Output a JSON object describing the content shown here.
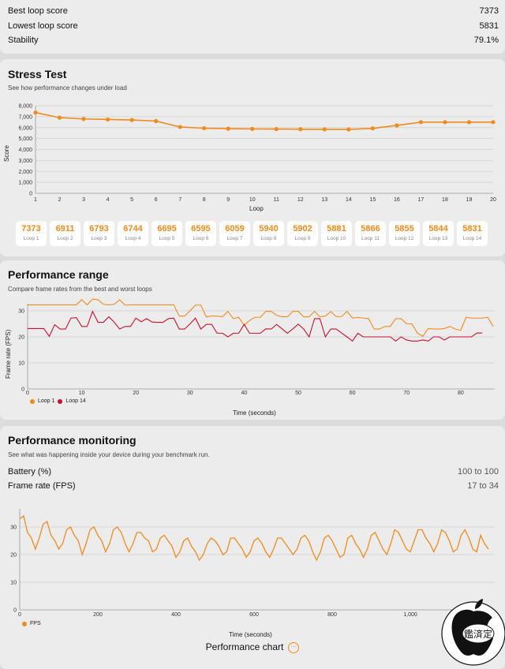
{
  "summary": {
    "rows": [
      {
        "label": "Best loop score",
        "value": "7373"
      },
      {
        "label": "Lowest loop score",
        "value": "5831"
      },
      {
        "label": "Stability",
        "value": "79.1%"
      }
    ]
  },
  "stress": {
    "title": "Stress Test",
    "subtitle": "See how performance changes under load",
    "loop_scores": [
      {
        "value": "7373",
        "label": "Loop 1"
      },
      {
        "value": "6911",
        "label": "Loop 2"
      },
      {
        "value": "6793",
        "label": "Loop 3"
      },
      {
        "value": "6744",
        "label": "Loop 4"
      },
      {
        "value": "6695",
        "label": "Loop 5"
      },
      {
        "value": "6595",
        "label": "Loop 6"
      },
      {
        "value": "6059",
        "label": "Loop 7"
      },
      {
        "value": "5940",
        "label": "Loop 8"
      },
      {
        "value": "5902",
        "label": "Loop 9"
      },
      {
        "value": "5881",
        "label": "Loop 10"
      },
      {
        "value": "5866",
        "label": "Loop 11"
      },
      {
        "value": "5855",
        "label": "Loop 12"
      },
      {
        "value": "5844",
        "label": "Loop 13"
      },
      {
        "value": "5831",
        "label": "Loop 14"
      }
    ]
  },
  "range": {
    "title": "Performance range",
    "subtitle": "Compare frame rates from the best and worst loops"
  },
  "monitoring": {
    "title": "Performance monitoring",
    "subtitle": "See what was happening inside your device during your benchmark run.",
    "battery_label": "Battery (%)",
    "battery_value": "100 to 100",
    "fps_label": "Frame rate (FPS)",
    "fps_value": "17 to 34",
    "chart_button": "Performance chart"
  },
  "watermark": {
    "text": "鑑済定"
  },
  "colors": {
    "accent": "#f08a1c",
    "loop14": "#c8102e"
  },
  "chart_data": [
    {
      "type": "line",
      "xlabel": "Loop",
      "ylabel": "Score",
      "ylim": [
        0,
        8000
      ],
      "xlim": [
        1,
        20
      ],
      "grid": true,
      "yticks": [
        "0",
        "1,000",
        "2,000",
        "3,000",
        "4,000",
        "5,000",
        "6,000",
        "7,000",
        "8,000"
      ],
      "x": [
        1,
        2,
        3,
        4,
        5,
        6,
        7,
        8,
        9,
        10,
        11,
        12,
        13,
        14,
        15,
        16,
        17,
        18,
        19,
        20
      ],
      "values": [
        7373,
        6911,
        6793,
        6744,
        6695,
        6595,
        6059,
        5940,
        5902,
        5881,
        5866,
        5855,
        5844,
        5831,
        5930,
        6200,
        6500,
        6500,
        6500,
        6500
      ]
    },
    {
      "type": "line",
      "xlabel": "Time (seconds)",
      "ylabel": "Frame rate (FPS)",
      "ylim": [
        0,
        35
      ],
      "xlim": [
        0,
        86
      ],
      "grid": true,
      "legend": "bottom-left",
      "xticks": [
        "0",
        "10",
        "20",
        "30",
        "40",
        "50",
        "60",
        "70",
        "80"
      ],
      "yticks": [
        "0",
        "10",
        "20",
        "30"
      ],
      "series": [
        {
          "name": "Loop 1",
          "color": "#f08a1c",
          "values": [
            32.3,
            32.3,
            32.3,
            32.3,
            32.3,
            32.3,
            32.3,
            32.3,
            32.3,
            32.3,
            34.3,
            32.3,
            34.5,
            34.3,
            32.5,
            32.3,
            32.5,
            34.2,
            32.2,
            32.3,
            32.3,
            32.3,
            32.3,
            32.3,
            32.3,
            32.3,
            32.3,
            32.3,
            28,
            28,
            30,
            32.2,
            32.2,
            27.7,
            28,
            28,
            27.7,
            29.8,
            27,
            27.5,
            24.5,
            26.3,
            27.5,
            27.5,
            29.8,
            29.8,
            28.3,
            27.7,
            27.7,
            29.8,
            29.8,
            27.7,
            27.7,
            29.8,
            27.7,
            28,
            29.7,
            27.8,
            27.8,
            29.8,
            27.2,
            27.5,
            27.2,
            27,
            23,
            23,
            24,
            24,
            27,
            27,
            25,
            25,
            21.5,
            20.2,
            23.2,
            23,
            23,
            23.2,
            24,
            23,
            22.5,
            27.5,
            27.2,
            27.2,
            27.2,
            27.5,
            24
          ]
        },
        {
          "name": "Loop 14",
          "color": "#c8102e",
          "values": [
            23.2,
            23.2,
            23.2,
            23.2,
            20.2,
            24.7,
            23,
            23,
            27.2,
            27.4,
            24,
            24,
            29.8,
            25.6,
            25.6,
            27.7,
            25.6,
            23,
            24,
            24,
            27.2,
            25.8,
            27,
            25.7,
            25.6,
            25.6,
            27,
            27.2,
            23,
            23,
            25,
            27.2,
            23,
            24.8,
            24.8,
            21.4,
            21.4,
            20,
            21.4,
            21.4,
            24.8,
            21.4,
            21.4,
            21.4,
            23.1,
            23,
            24.8,
            23.1,
            21.4,
            23.1,
            24.9,
            23,
            20,
            27,
            27,
            20,
            23,
            23,
            21.5,
            20,
            18.4,
            21.4,
            20,
            20,
            20,
            20,
            20,
            20,
            18.4,
            20,
            18.8,
            18.4,
            18.4,
            18.8,
            18.4,
            20,
            20,
            18.8,
            20,
            20,
            20,
            20,
            20,
            21.5,
            21.5
          ]
        }
      ]
    },
    {
      "type": "line",
      "xlabel": "Time (seconds)",
      "ylim": [
        0,
        35
      ],
      "xlim": [
        0,
        1200
      ],
      "grid": true,
      "legend": "bottom-left",
      "xticks": [
        "0",
        "200",
        "400",
        "600",
        "800",
        "1,000"
      ],
      "yticks": [
        "0",
        "10",
        "20",
        "30"
      ],
      "series": [
        {
          "name": "FPS",
          "color": "#f08a1c",
          "x_step": 10,
          "values": [
            33,
            34,
            28,
            26,
            22,
            26,
            31,
            32,
            27,
            25,
            22,
            24,
            29,
            30,
            27,
            25,
            20,
            24,
            29,
            30,
            27,
            25,
            21,
            24,
            29,
            30,
            28,
            24,
            21,
            24,
            28,
            28,
            26,
            25,
            21,
            22,
            26,
            27,
            25,
            23,
            19,
            21,
            25,
            26,
            23,
            21,
            18,
            20,
            24,
            26,
            25,
            23,
            20,
            21,
            26,
            26,
            24,
            22,
            19,
            21,
            25,
            26,
            24,
            21,
            19,
            22,
            26,
            26,
            24,
            22,
            20,
            22,
            26,
            27,
            25,
            21,
            18,
            21,
            26,
            27,
            25,
            22,
            19,
            20,
            26,
            27,
            24,
            22,
            19,
            22,
            27,
            28,
            25,
            22,
            20,
            24,
            29,
            28,
            25,
            22,
            21,
            25,
            29,
            29,
            26,
            24,
            21,
            24,
            29,
            28,
            25,
            21,
            22,
            27,
            29,
            26,
            22,
            21,
            27,
            24,
            22
          ]
        }
      ]
    }
  ]
}
